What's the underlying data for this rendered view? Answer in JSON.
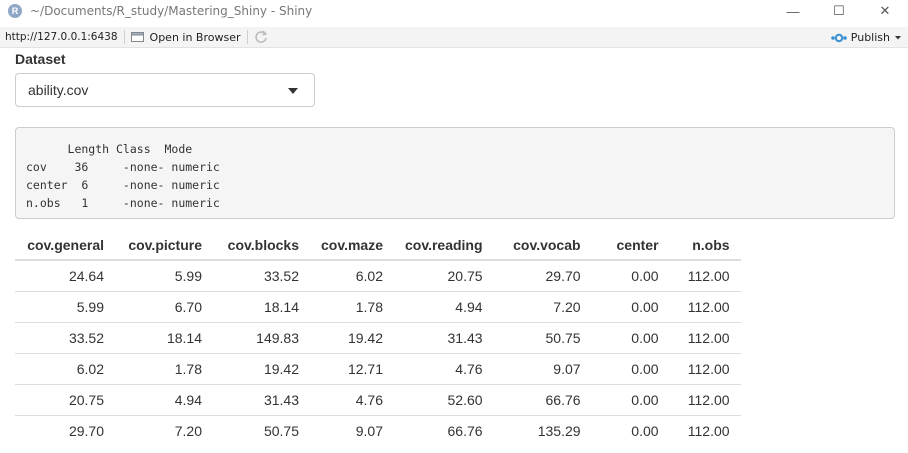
{
  "window": {
    "app_icon_letter": "R",
    "title": "~/Documents/R_study/Mastering_Shiny - Shiny",
    "minimize": "—",
    "maximize": "☐",
    "close": "✕"
  },
  "toolbar": {
    "url": "http://127.0.0.1:6438",
    "open_in_browser": "Open in Browser",
    "publish": "Publish"
  },
  "dataset": {
    "label": "Dataset",
    "selected": "ability.cov"
  },
  "summary": {
    "lines": [
      "      Length Class  Mode   ",
      "cov    36     -none- numeric",
      "center  6     -none- numeric",
      "n.obs   1     -none- numeric"
    ]
  },
  "table": {
    "headers": [
      "cov.general",
      "cov.picture",
      "cov.blocks",
      "cov.maze",
      "cov.reading",
      "cov.vocab",
      "center",
      "n.obs"
    ],
    "rows": [
      [
        "24.64",
        "5.99",
        "33.52",
        "6.02",
        "20.75",
        "29.70",
        "0.00",
        "112.00"
      ],
      [
        "5.99",
        "6.70",
        "18.14",
        "1.78",
        "4.94",
        "7.20",
        "0.00",
        "112.00"
      ],
      [
        "33.52",
        "18.14",
        "149.83",
        "19.42",
        "31.43",
        "50.75",
        "0.00",
        "112.00"
      ],
      [
        "6.02",
        "1.78",
        "19.42",
        "12.71",
        "4.76",
        "9.07",
        "0.00",
        "112.00"
      ],
      [
        "20.75",
        "4.94",
        "31.43",
        "4.76",
        "52.60",
        "66.76",
        "0.00",
        "112.00"
      ],
      [
        "29.70",
        "7.20",
        "50.75",
        "9.07",
        "66.76",
        "135.29",
        "0.00",
        "112.00"
      ]
    ]
  }
}
